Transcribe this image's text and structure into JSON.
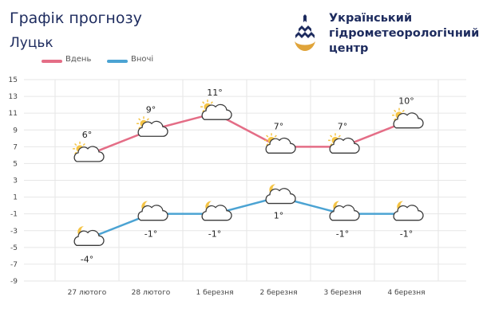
{
  "header": {
    "title": "Графік прогнозу",
    "city": "Луцьк"
  },
  "logo": {
    "line1": "Український",
    "line2": "гідрометеорологічний",
    "line3": "центр",
    "icon": "drop-logo-icon"
  },
  "colors": {
    "day": "#e46d86",
    "night": "#4ba3d3",
    "grid": "#e6e6e6",
    "sun": "#f5c445",
    "moon": "#f5c445"
  },
  "chart_data": {
    "type": "line",
    "categories": [
      "27 лютого",
      "28 лютого",
      "1 березня",
      "2 березня",
      "3 березня",
      "4 березня"
    ],
    "series": [
      {
        "name": "Вдень",
        "values": [
          6,
          9,
          11,
          7,
          7,
          10
        ],
        "labels": [
          "6°",
          "9°",
          "11°",
          "7°",
          "7°",
          "10°"
        ],
        "icon": "sun-cloud-icon"
      },
      {
        "name": "Вночі",
        "values": [
          -4,
          -1,
          -1,
          1,
          -1,
          -1
        ],
        "labels": [
          "-4°",
          "-1°",
          "-1°",
          "1°",
          "-1°",
          "-1°"
        ],
        "icon": "moon-cloud-icon"
      }
    ],
    "yticks": [
      15,
      13,
      11,
      9,
      7,
      5,
      3,
      1,
      -1,
      -3,
      -5,
      -7,
      -9
    ],
    "ylim": [
      -9,
      15
    ],
    "grid": true,
    "legend": "top-left"
  }
}
